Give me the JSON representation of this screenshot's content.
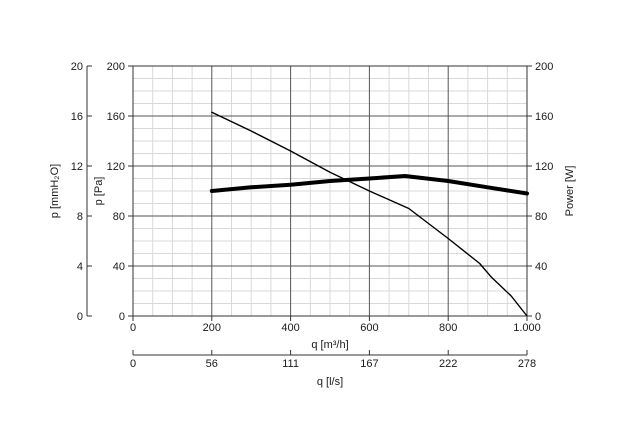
{
  "chart_data": {
    "type": "line",
    "x_axis": {
      "label": "q [m³/h]",
      "range": [
        0,
        1000
      ],
      "ticks": [
        0,
        200,
        400,
        600,
        800,
        1000
      ],
      "tick_labels": [
        "0",
        "200",
        "400",
        "600",
        "800",
        "1.000"
      ]
    },
    "x_axis_secondary": {
      "label": "q [l/s]",
      "tick_labels": [
        "0",
        "56",
        "111",
        "167",
        "222",
        "278"
      ]
    },
    "y_axis_left_inner": {
      "label": "p [Pa]",
      "range": [
        0,
        200
      ],
      "ticks": [
        0,
        40,
        80,
        120,
        160,
        200
      ],
      "tick_labels": [
        "0",
        "40",
        "80",
        "120",
        "160",
        "200"
      ]
    },
    "y_axis_left_outer": {
      "label": "p [mmH₂O]",
      "range": [
        0,
        20
      ],
      "tick_labels": [
        "0",
        "4",
        "8",
        "12",
        "16",
        "20"
      ]
    },
    "y_axis_right": {
      "label": "Power [W]",
      "range": [
        0,
        200
      ],
      "tick_labels": [
        "0",
        "40",
        "80",
        "120",
        "160",
        "200"
      ]
    },
    "grid": true,
    "series": [
      {
        "axis": "pressure",
        "line_width": "thin",
        "color": "#000000",
        "x": [
          200,
          300,
          400,
          500,
          600,
          700,
          800,
          880,
          910,
          960,
          1000
        ],
        "y": [
          163,
          148,
          132,
          115,
          100,
          86,
          62,
          42,
          31,
          16,
          0
        ]
      },
      {
        "axis": "power",
        "line_width": "thick",
        "color": "#000000",
        "x": [
          200,
          300,
          400,
          500,
          600,
          690,
          800,
          900,
          1000
        ],
        "y": [
          100,
          103,
          105,
          108,
          110,
          112,
          108,
          103,
          98
        ]
      }
    ]
  }
}
